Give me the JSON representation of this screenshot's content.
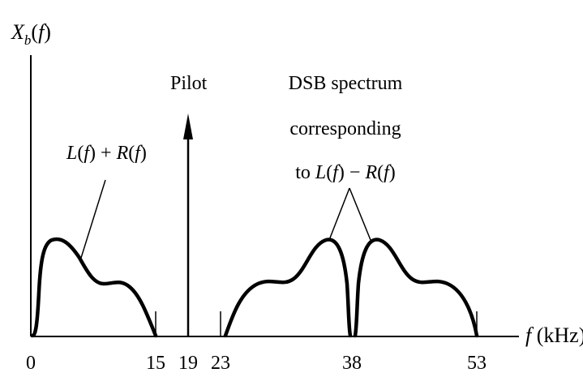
{
  "y_label": "X_b(f)",
  "x_label": "f (kHz)",
  "ticks": [
    "0",
    "15",
    "19",
    "23",
    "38",
    "53"
  ],
  "annotations": {
    "pilot": "Pilot",
    "baseband": "L(f) + R(f)",
    "dsb_line1": "DSB spectrum",
    "dsb_line2": "corresponding",
    "dsb_line3": "to L(f) − R(f)"
  }
}
